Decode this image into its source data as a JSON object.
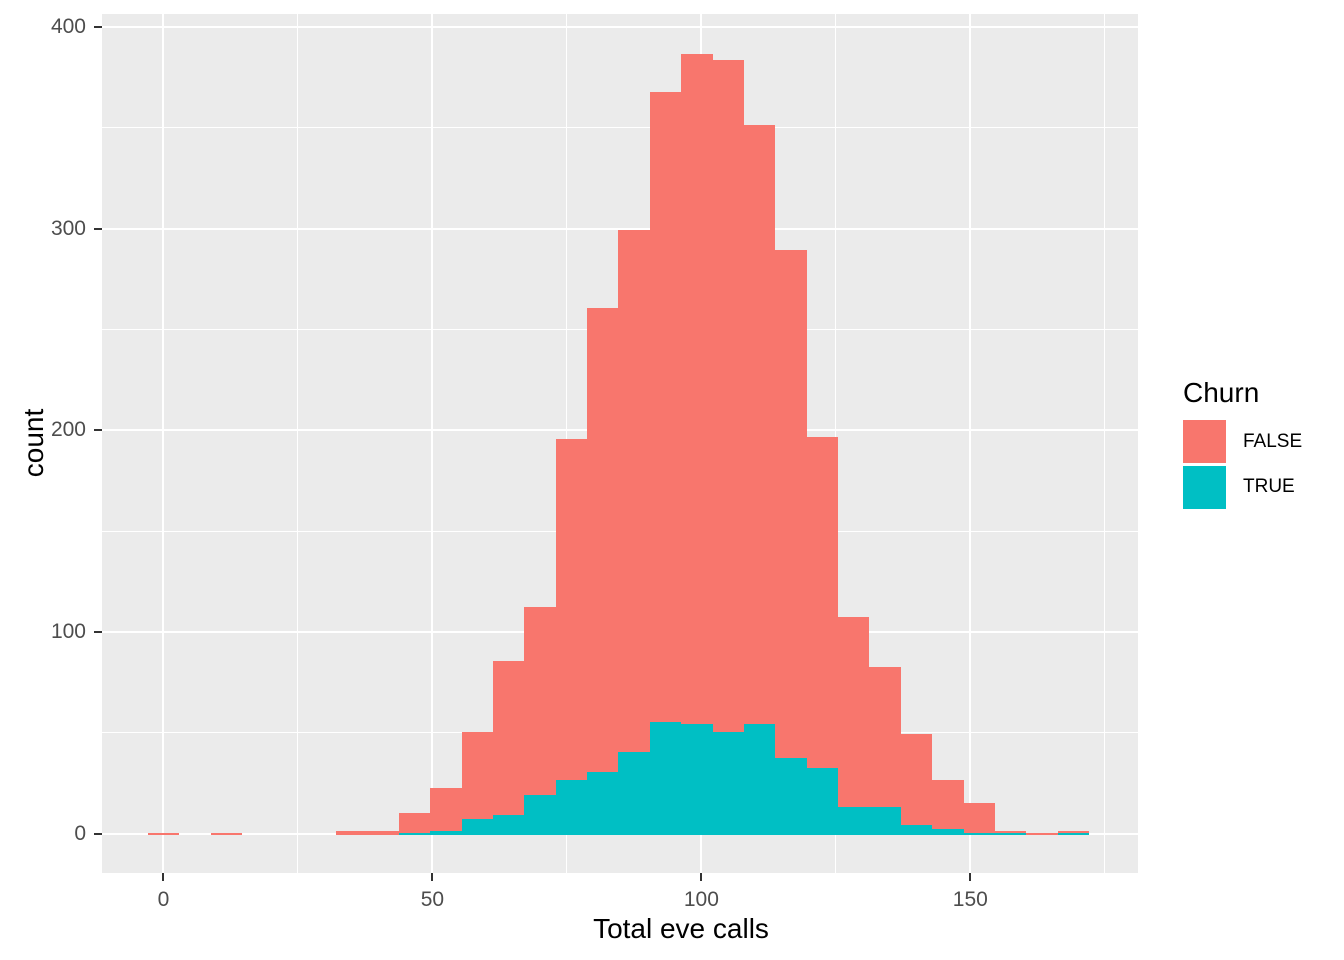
{
  "chart_data": {
    "type": "bar",
    "subtype": "stacked-histogram",
    "title": "",
    "xlabel": "Total eve calls",
    "ylabel": "count",
    "legend_title": "Churn",
    "legend_position": "right",
    "grid": true,
    "panel_bg": "#EBEBEB",
    "grid_color": "#FFFFFF",
    "tick_label_color": "#4D4D4D",
    "axis_title_color": "#000000",
    "x_ticks": [
      0,
      50,
      100,
      150
    ],
    "x_minor_ticks": [
      25,
      75,
      125,
      175
    ],
    "y_ticks": [
      0,
      100,
      200,
      300,
      400
    ],
    "y_minor_ticks": [
      50,
      150,
      250,
      350
    ],
    "x_domain": [
      -11.43,
      181.17
    ],
    "y_domain": [
      -19.4,
      406.4
    ],
    "binwidth": 5.8333,
    "series": [
      {
        "name": "FALSE",
        "color": "#F8766D"
      },
      {
        "name": "TRUE",
        "color": "#00BFC4"
      }
    ],
    "bins": [
      {
        "center": 0.0,
        "FALSE": 1,
        "TRUE": 0
      },
      {
        "center": 5.83,
        "FALSE": 0,
        "TRUE": 0
      },
      {
        "center": 11.67,
        "FALSE": 1,
        "TRUE": 0
      },
      {
        "center": 17.5,
        "FALSE": 0,
        "TRUE": 0
      },
      {
        "center": 23.33,
        "FALSE": 0,
        "TRUE": 0
      },
      {
        "center": 29.17,
        "FALSE": 0,
        "TRUE": 0
      },
      {
        "center": 35.0,
        "FALSE": 2,
        "TRUE": 0
      },
      {
        "center": 40.83,
        "FALSE": 2,
        "TRUE": 0
      },
      {
        "center": 46.67,
        "FALSE": 10,
        "TRUE": 1
      },
      {
        "center": 52.5,
        "FALSE": 21,
        "TRUE": 2
      },
      {
        "center": 58.33,
        "FALSE": 43,
        "TRUE": 8
      },
      {
        "center": 64.17,
        "FALSE": 76,
        "TRUE": 10
      },
      {
        "center": 70.0,
        "FALSE": 93,
        "TRUE": 20
      },
      {
        "center": 75.83,
        "FALSE": 169,
        "TRUE": 27
      },
      {
        "center": 81.67,
        "FALSE": 230,
        "TRUE": 31
      },
      {
        "center": 87.5,
        "FALSE": 259,
        "TRUE": 41
      },
      {
        "center": 93.33,
        "FALSE": 312,
        "TRUE": 56
      },
      {
        "center": 99.17,
        "FALSE": 332,
        "TRUE": 55
      },
      {
        "center": 105.0,
        "FALSE": 333,
        "TRUE": 51
      },
      {
        "center": 110.83,
        "FALSE": 297,
        "TRUE": 55
      },
      {
        "center": 116.67,
        "FALSE": 252,
        "TRUE": 38
      },
      {
        "center": 122.5,
        "FALSE": 164,
        "TRUE": 33
      },
      {
        "center": 128.33,
        "FALSE": 94,
        "TRUE": 14
      },
      {
        "center": 134.17,
        "FALSE": 69,
        "TRUE": 14
      },
      {
        "center": 140.0,
        "FALSE": 45,
        "TRUE": 5
      },
      {
        "center": 145.83,
        "FALSE": 24,
        "TRUE": 3
      },
      {
        "center": 151.67,
        "FALSE": 15,
        "TRUE": 1
      },
      {
        "center": 157.5,
        "FALSE": 1,
        "TRUE": 1
      },
      {
        "center": 163.33,
        "FALSE": 1,
        "TRUE": 0
      },
      {
        "center": 169.17,
        "FALSE": 1,
        "TRUE": 1
      }
    ]
  },
  "legend": {
    "title": "Churn",
    "items": [
      {
        "label": "FALSE",
        "color": "#F8766D"
      },
      {
        "label": "TRUE",
        "color": "#00BFC4"
      }
    ]
  }
}
